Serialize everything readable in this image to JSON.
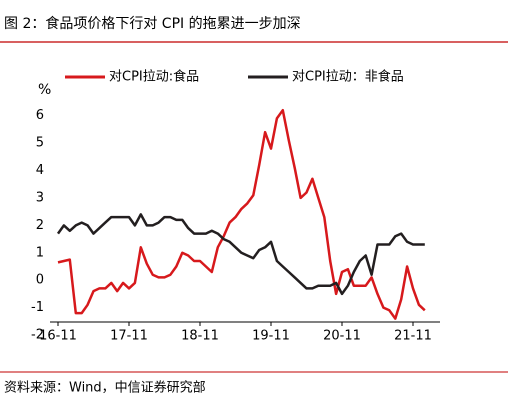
{
  "chart_data": {
    "type": "line",
    "title": "图 2：食品项价格下行对 CPI 的拖累进一步加深",
    "source": "资料来源：Wind，中信证券研究部",
    "ylabel": "%",
    "categories": [
      "16-11",
      null,
      null,
      null,
      null,
      null,
      null,
      null,
      null,
      null,
      null,
      null,
      "17-11",
      null,
      null,
      null,
      null,
      null,
      null,
      null,
      null,
      null,
      null,
      null,
      "18-11",
      null,
      null,
      null,
      null,
      null,
      null,
      null,
      null,
      null,
      null,
      null,
      "19-11",
      null,
      null,
      null,
      null,
      null,
      null,
      null,
      null,
      null,
      null,
      null,
      "20-11",
      null,
      null,
      null,
      null,
      null,
      null,
      null,
      null,
      null,
      null,
      null,
      "21-11",
      null,
      null
    ],
    "series": [
      {
        "name": "对CPI拉动:食品",
        "color": "#d7191c",
        "values": [
          0.65,
          0.7,
          0.75,
          -1.2,
          -1.2,
          -0.9,
          -0.4,
          -0.3,
          -0.3,
          -0.1,
          -0.4,
          -0.1,
          -0.3,
          -0.1,
          1.2,
          0.6,
          0.2,
          0.1,
          0.1,
          0.2,
          0.5,
          1.0,
          0.9,
          0.7,
          0.7,
          0.5,
          0.3,
          1.2,
          1.6,
          2.1,
          2.3,
          2.6,
          2.8,
          3.1,
          4.2,
          5.4,
          4.8,
          5.9,
          6.2,
          5.1,
          4.1,
          3.0,
          3.2,
          3.7,
          3.0,
          2.3,
          0.7,
          -0.5,
          0.3,
          0.4,
          -0.2,
          -0.2,
          -0.2,
          0.1,
          -0.5,
          -1.0,
          -1.1,
          -1.4,
          -0.7,
          0.5,
          -0.3,
          -0.9,
          -1.1
        ]
      },
      {
        "name": "对CPI拉动：非食品",
        "color": "#231f20",
        "values": [
          1.7,
          2.0,
          1.8,
          2.0,
          2.1,
          2.0,
          1.7,
          1.9,
          2.1,
          2.3,
          2.3,
          2.3,
          2.3,
          2.0,
          2.4,
          2.0,
          2.0,
          2.1,
          2.3,
          2.3,
          2.2,
          2.2,
          1.9,
          1.7,
          1.7,
          1.7,
          1.8,
          1.7,
          1.5,
          1.4,
          1.2,
          1.0,
          0.9,
          0.8,
          1.1,
          1.2,
          1.4,
          0.7,
          0.5,
          0.3,
          0.1,
          -0.1,
          -0.3,
          -0.3,
          -0.2,
          -0.2,
          -0.2,
          -0.1,
          -0.5,
          -0.2,
          0.3,
          0.7,
          0.9,
          0.2,
          1.3,
          1.3,
          1.3,
          1.6,
          1.7,
          1.4,
          1.3,
          1.3,
          1.3
        ]
      }
    ],
    "ylim": [
      -2,
      6.5
    ],
    "yticks": [
      -2,
      -1,
      0,
      1,
      2,
      3,
      4,
      5,
      6
    ],
    "grid": false,
    "legend": "top"
  }
}
